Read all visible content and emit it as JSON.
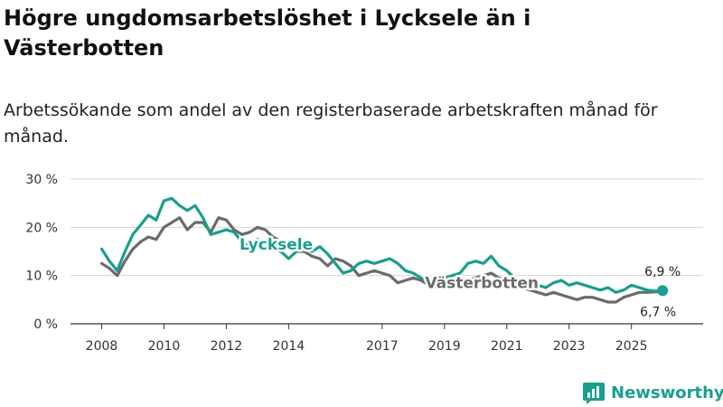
{
  "chart_data": {
    "type": "line",
    "title": "Högre ungdomsarbetslöshet i Lycksele än i Västerbotten",
    "subtitle": "Arbetssökande som andel av den registerbaserade arbetskraften månad för månad.",
    "xlabel": "",
    "ylabel": "",
    "ylim": [
      0,
      30
    ],
    "yticks": [
      0,
      10,
      20,
      30
    ],
    "ytick_labels": [
      "0 %",
      "10 %",
      "20 %",
      "30 %"
    ],
    "xlim": [
      2007,
      2027.3
    ],
    "xticks": [
      2008,
      2010,
      2012,
      2014,
      2017,
      2019,
      2021,
      2023,
      2025
    ],
    "xtick_labels": [
      "2008",
      "2010",
      "2012",
      "2014",
      "2017",
      "2019",
      "2021",
      "2023",
      "2025"
    ],
    "grid": "horizontal",
    "colors": {
      "lycksele": "#1a9e8f",
      "vasterbotten": "#6b6b6b",
      "grid": "#d4d4d4",
      "axis": "#333333"
    },
    "series": [
      {
        "name": "Lycksele",
        "label": "Lycksele",
        "x": [
          2008.0,
          2008.25,
          2008.5,
          2008.75,
          2009.0,
          2009.25,
          2009.5,
          2009.75,
          2010.0,
          2010.25,
          2010.5,
          2010.75,
          2011.0,
          2011.25,
          2011.5,
          2011.75,
          2012.0,
          2012.25,
          2012.5,
          2012.75,
          2013.0,
          2013.25,
          2013.5,
          2013.75,
          2014.0,
          2014.25,
          2014.5,
          2014.75,
          2015.0,
          2015.25,
          2015.5,
          2015.75,
          2016.0,
          2016.25,
          2016.5,
          2016.75,
          2017.0,
          2017.25,
          2017.5,
          2017.75,
          2018.0,
          2018.25,
          2018.5,
          2018.75,
          2019.0,
          2019.25,
          2019.5,
          2019.75,
          2020.0,
          2020.25,
          2020.5,
          2020.75,
          2021.0,
          2021.25,
          2021.5,
          2021.75,
          2022.0,
          2022.25,
          2022.5,
          2022.75,
          2023.0,
          2023.25,
          2023.5,
          2023.75,
          2024.0,
          2024.25,
          2024.5,
          2024.75,
          2025.0,
          2025.25,
          2025.5,
          2025.75,
          2026.0
        ],
        "values": [
          15.5,
          13.0,
          11.0,
          15.0,
          18.5,
          20.5,
          22.5,
          21.5,
          25.5,
          26.0,
          24.5,
          23.5,
          24.5,
          22.0,
          18.5,
          19.0,
          19.5,
          19.0,
          17.0,
          16.0,
          17.5,
          16.0,
          15.5,
          15.0,
          13.5,
          15.0,
          15.5,
          15.0,
          16.0,
          14.5,
          12.5,
          10.5,
          11.0,
          12.5,
          13.0,
          12.5,
          13.0,
          13.5,
          12.5,
          11.0,
          10.5,
          9.5,
          8.5,
          9.0,
          9.5,
          10.0,
          10.5,
          12.5,
          13.0,
          12.5,
          14.0,
          12.0,
          11.0,
          9.5,
          8.5,
          8.0,
          8.0,
          7.5,
          8.5,
          9.0,
          8.0,
          8.5,
          8.0,
          7.5,
          7.0,
          7.5,
          6.5,
          7.0,
          8.0,
          7.5,
          7.0,
          6.8,
          6.9
        ]
      },
      {
        "name": "Västerbotten",
        "label": "Västerbotten",
        "x": [
          2008.0,
          2008.25,
          2008.5,
          2008.75,
          2009.0,
          2009.25,
          2009.5,
          2009.75,
          2010.0,
          2010.25,
          2010.5,
          2010.75,
          2011.0,
          2011.25,
          2011.5,
          2011.75,
          2012.0,
          2012.25,
          2012.5,
          2012.75,
          2013.0,
          2013.25,
          2013.5,
          2013.75,
          2014.0,
          2014.25,
          2014.5,
          2014.75,
          2015.0,
          2015.25,
          2015.5,
          2015.75,
          2016.0,
          2016.25,
          2016.5,
          2016.75,
          2017.0,
          2017.25,
          2017.5,
          2017.75,
          2018.0,
          2018.25,
          2018.5,
          2018.75,
          2019.0,
          2019.25,
          2019.5,
          2019.75,
          2020.0,
          2020.25,
          2020.5,
          2020.75,
          2021.0,
          2021.25,
          2021.5,
          2021.75,
          2022.0,
          2022.25,
          2022.5,
          2022.75,
          2023.0,
          2023.25,
          2023.5,
          2023.75,
          2024.0,
          2024.25,
          2024.5,
          2024.75,
          2025.0,
          2025.25,
          2025.5,
          2025.75,
          2026.0
        ],
        "values": [
          12.5,
          11.5,
          10.0,
          13.0,
          15.5,
          17.0,
          18.0,
          17.5,
          20.0,
          21.0,
          22.0,
          19.5,
          21.0,
          21.0,
          19.0,
          22.0,
          21.5,
          19.5,
          18.5,
          19.0,
          20.0,
          19.5,
          18.0,
          17.0,
          15.5,
          15.0,
          15.0,
          14.0,
          13.5,
          12.0,
          13.5,
          13.0,
          12.0,
          10.0,
          10.5,
          11.0,
          10.5,
          10.0,
          8.5,
          9.0,
          9.5,
          9.0,
          8.0,
          7.5,
          8.0,
          7.5,
          8.0,
          9.0,
          9.5,
          10.0,
          10.5,
          9.5,
          9.0,
          8.0,
          7.5,
          7.0,
          6.5,
          6.0,
          6.5,
          6.0,
          5.5,
          5.0,
          5.5,
          5.5,
          5.0,
          4.5,
          4.5,
          5.5,
          6.0,
          6.5,
          6.5,
          6.6,
          6.7
        ]
      }
    ],
    "end_labels": [
      "6,9 %",
      "6,7 %"
    ]
  },
  "brand": {
    "name": "Newsworthy",
    "icon": "bar-chart-logo-icon"
  }
}
